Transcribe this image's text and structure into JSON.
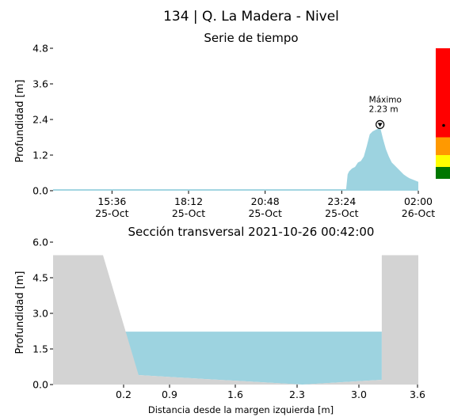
{
  "header": {
    "title": "134 | Q. La Madera - Nivel"
  },
  "chart_data": [
    {
      "type": "area",
      "title": "Serie de tiempo",
      "ylabel": "Profundidad [m]",
      "ylim": [
        0,
        4.8
      ],
      "yticks": [
        "0.0",
        "1.2",
        "2.4",
        "3.6",
        "4.8"
      ],
      "xticks": [
        {
          "time": "15:36",
          "date": "25-Oct"
        },
        {
          "time": "18:12",
          "date": "25-Oct"
        },
        {
          "time": "20:48",
          "date": "25-Oct"
        },
        {
          "time": "23:24",
          "date": "25-Oct"
        },
        {
          "time": "02:00",
          "date": "26-Oct"
        }
      ],
      "xlim": [
        "2021-10-25 13:36",
        "2021-10-26 02:00"
      ],
      "series": [
        {
          "x": [
            "2021-10-25 13:36",
            "2021-10-25 23:33",
            "2021-10-25 23:36",
            "2021-10-25 23:39",
            "2021-10-25 23:45",
            "2021-10-25 23:51",
            "2021-10-25 23:57",
            "2021-10-26 00:03",
            "2021-10-26 00:09",
            "2021-10-26 00:15",
            "2021-10-26 00:21",
            "2021-10-26 00:27",
            "2021-10-26 00:33",
            "2021-10-26 00:39",
            "2021-10-26 00:42",
            "2021-10-26 00:48",
            "2021-10-26 00:54",
            "2021-10-26 01:00",
            "2021-10-26 01:06",
            "2021-10-26 01:12",
            "2021-10-26 01:18",
            "2021-10-26 01:24",
            "2021-10-26 01:30",
            "2021-10-26 01:36",
            "2021-10-26 01:42",
            "2021-10-26 01:48",
            "2021-10-26 01:54",
            "2021-10-26 02:00"
          ],
          "values": [
            0.05,
            0.05,
            0.55,
            0.65,
            0.75,
            0.8,
            0.95,
            1.0,
            1.15,
            1.5,
            1.9,
            2.0,
            2.05,
            2.1,
            2.15,
            1.75,
            1.4,
            1.15,
            0.95,
            0.85,
            0.75,
            0.65,
            0.55,
            0.48,
            0.42,
            0.38,
            0.34,
            0.3
          ]
        }
      ],
      "annotation": {
        "label": "Máximo",
        "value": "2.23 m",
        "x": "2021-10-26 00:42",
        "y": 2.23
      },
      "threshold_bar": {
        "colors": [
          "#ff0000",
          "#ff9900",
          "#ffff00",
          "#007700"
        ],
        "bounds": [
          [
            1.8,
            4.8
          ],
          [
            1.2,
            1.8
          ],
          [
            0.8,
            1.2
          ],
          [
            0.4,
            0.8
          ]
        ],
        "current": 2.2
      },
      "colors": {
        "area": "#9dd3e0"
      }
    },
    {
      "type": "area",
      "title": "Sección transversal 2021-10-26 00:42:00",
      "xlabel": "Distancia desde la margen izquierda [m]",
      "ylabel": "Profundidad [m]",
      "xlim": [
        -0.5,
        3.6
      ],
      "ylim": [
        0,
        6.0
      ],
      "xticks": [
        "0.2",
        "0.9",
        "1.6",
        "2.3",
        "3.0",
        "3.6"
      ],
      "yticks": [
        "0.0",
        "1.5",
        "3.0",
        "4.5",
        "6.0"
      ],
      "bed_profile": {
        "x": [
          -0.5,
          0.06,
          0.46,
          0.9,
          1.6,
          2.3,
          3.19,
          3.19,
          3.6
        ],
        "y": [
          5.45,
          5.45,
          0.4,
          0.3,
          0.15,
          0.0,
          0.2,
          5.45,
          5.45
        ]
      },
      "water_level": 2.23,
      "water_extent": [
        0.12,
        3.19
      ],
      "colors": {
        "bed": "#d3d3d3",
        "water": "#9dd3e0"
      }
    }
  ]
}
